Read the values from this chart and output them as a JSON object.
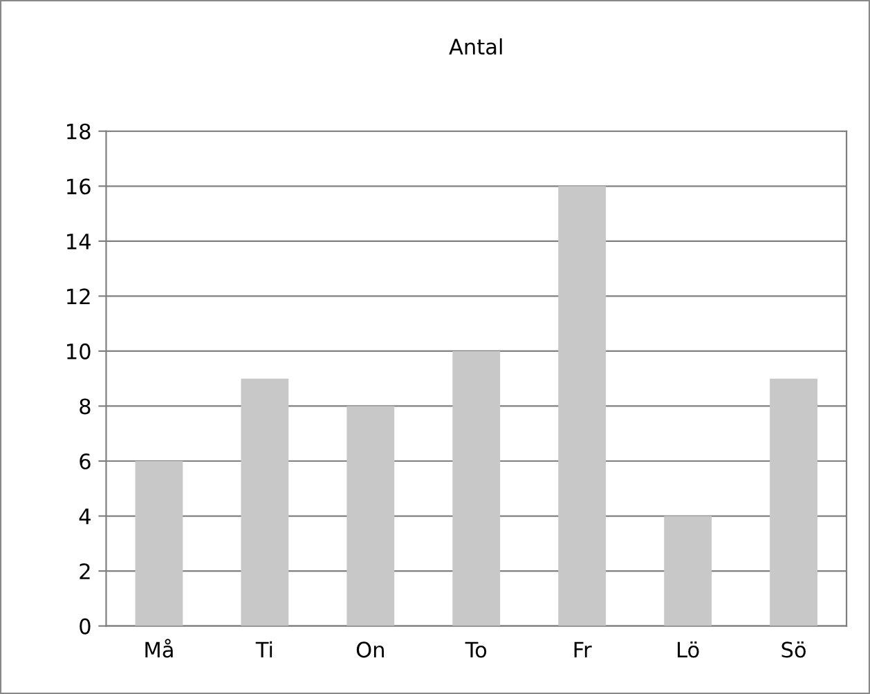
{
  "chart_data": {
    "type": "bar",
    "title": "Antal",
    "categories": [
      "Må",
      "Ti",
      "On",
      "To",
      "Fr",
      "Lö",
      "Sö"
    ],
    "values": [
      6,
      9,
      8,
      10,
      16,
      4,
      9
    ],
    "color": "#c8c8c8",
    "ylim": [
      0,
      18
    ],
    "yticks": [
      0,
      2,
      4,
      6,
      8,
      10,
      12,
      14,
      16,
      18
    ],
    "grid": "y",
    "legend": false
  }
}
